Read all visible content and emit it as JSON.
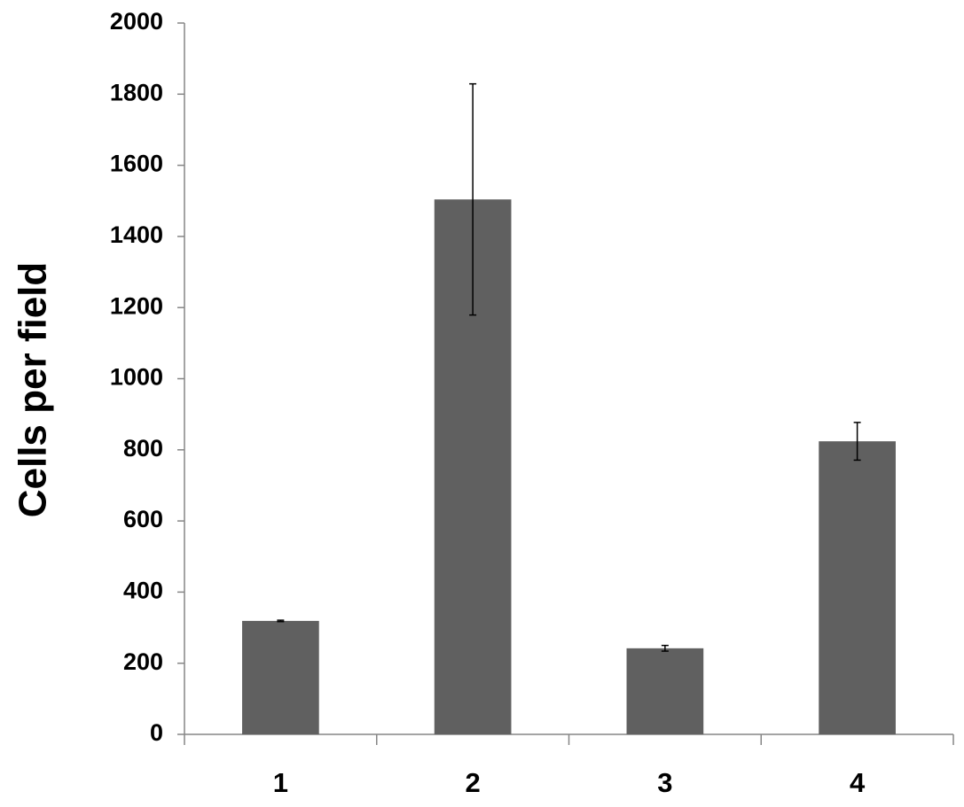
{
  "chart_data": {
    "type": "bar",
    "y_label": "Cells per field",
    "categories": [
      "1",
      "2",
      "3",
      "4"
    ],
    "values": [
      319,
      1504,
      242,
      824
    ],
    "errors": [
      2,
      325,
      8,
      53
    ],
    "color": "#606060",
    "ylim": [
      0,
      2000
    ],
    "yticks": [
      0,
      200,
      400,
      600,
      800,
      1000,
      1200,
      1400,
      1600,
      1800,
      2000
    ],
    "grid": false
  }
}
